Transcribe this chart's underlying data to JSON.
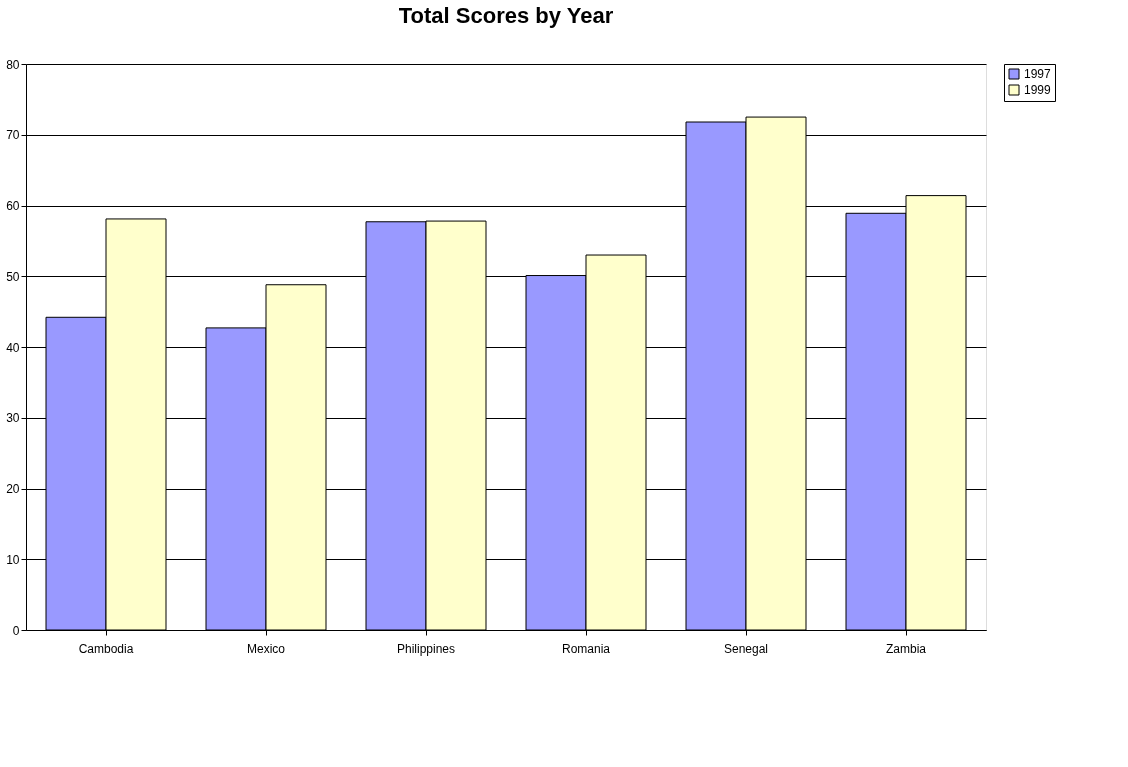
{
  "chart_data": {
    "type": "bar",
    "title": "Total Scores by Year",
    "categories": [
      "Cambodia",
      "Mexico",
      "Philippines",
      "Romania",
      "Senegal",
      "Zambia"
    ],
    "series": [
      {
        "name": "1997",
        "color": "#9999ff",
        "values": [
          44.2,
          42.7,
          57.7,
          50.1,
          71.8,
          58.9
        ]
      },
      {
        "name": "1999",
        "color": "#ffffcc",
        "values": [
          58.1,
          48.8,
          57.8,
          53.0,
          72.5,
          61.4
        ]
      }
    ],
    "ylim": [
      0,
      80
    ],
    "yticks": [
      0,
      10,
      20,
      30,
      40,
      50,
      60,
      70,
      80
    ],
    "grid": "y",
    "legend": "right"
  }
}
